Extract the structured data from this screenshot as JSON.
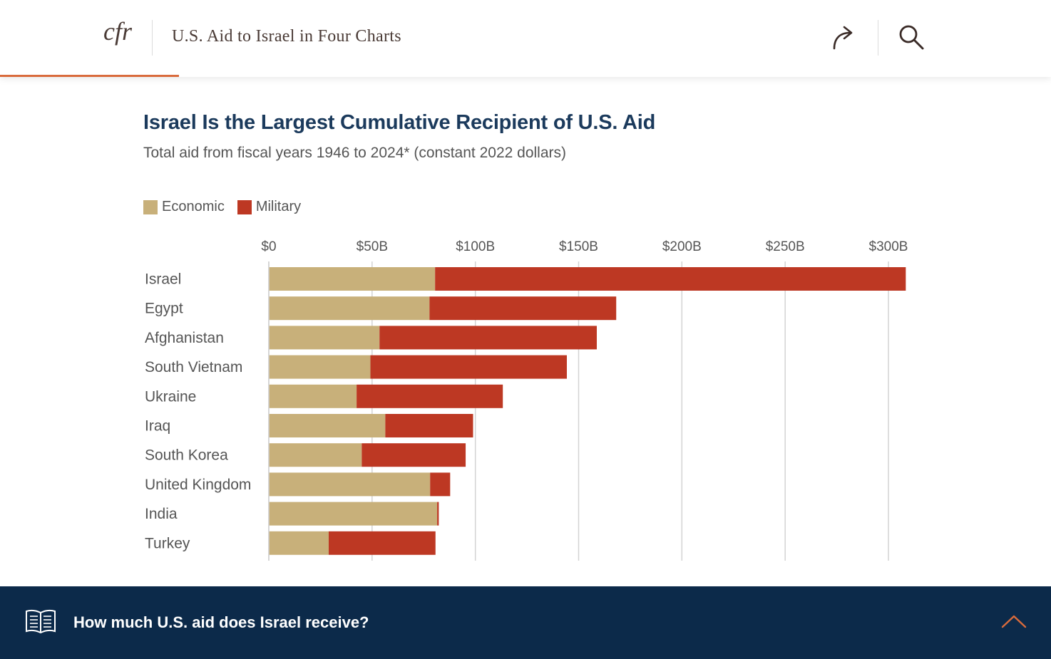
{
  "header": {
    "logo_text": "cfr",
    "title": "U.S. Aid to Israel in Four Charts",
    "share_icon": "share-arrow-icon",
    "search_icon": "search-icon",
    "progress_fraction": 0.17,
    "accent_color": "#d96b3c"
  },
  "chart_data": {
    "type": "bar",
    "orientation": "horizontal",
    "stacked": true,
    "title": "Israel Is the Largest Cumulative Recipient of U.S. Aid",
    "subtitle": "Total aid from fiscal years 1946 to 2024* (constant 2022 dollars)",
    "categories": [
      "Israel",
      "Egypt",
      "Afghanistan",
      "South Vietnam",
      "Ukraine",
      "Iraq",
      "South Korea",
      "United Kingdom",
      "India",
      "Turkey"
    ],
    "series": [
      {
        "name": "Economic",
        "color": "#c8b07a",
        "values": [
          80.5,
          77.8,
          53.6,
          49.2,
          42.5,
          56.4,
          45.0,
          78.1,
          81.5,
          29.0
        ]
      },
      {
        "name": "Military",
        "color": "#bd3823",
        "values": [
          227.9,
          90.4,
          105.2,
          95.1,
          70.8,
          42.5,
          50.3,
          9.7,
          0.8,
          51.7
        ]
      }
    ],
    "x_ticks": [
      "$0",
      "$50B",
      "$100B",
      "$150B",
      "$200B",
      "$250B",
      "$300B"
    ],
    "x_tick_values": [
      0,
      50,
      100,
      150,
      200,
      250,
      300
    ],
    "xlim": [
      0,
      310
    ],
    "grid": true,
    "legend_position": "top-left"
  },
  "bottom_bar": {
    "book_icon": "open-book-icon",
    "text": "How much U.S. aid does Israel receive?",
    "chevron_icon": "chevron-up-icon",
    "background": "#0c2a4a"
  }
}
